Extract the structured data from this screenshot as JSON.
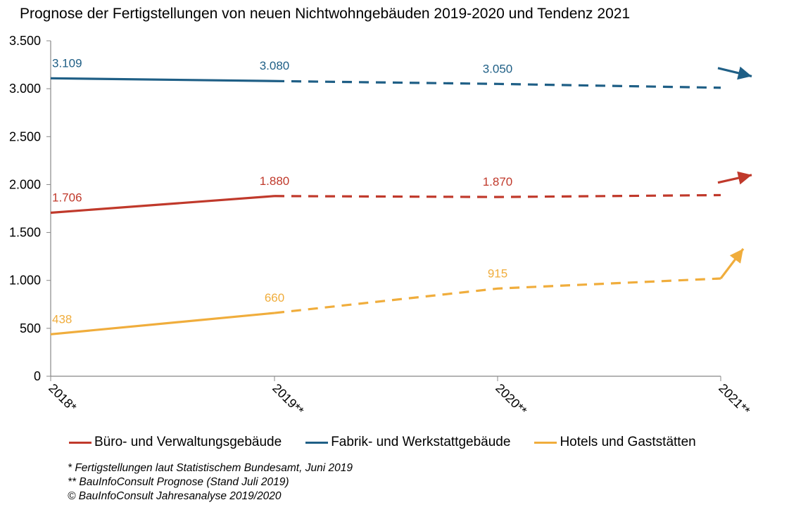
{
  "chart_data": {
    "type": "line",
    "title": "Prognose der Fertigstellungen  von neuen Nichtwohngebäuden  2019-2020 und Tendenz  2021",
    "categories": [
      "2018*",
      "2019**",
      "2020**",
      "2021**"
    ],
    "ylim": [
      0,
      3500
    ],
    "yticks": [
      0,
      500,
      1000,
      1500,
      2000,
      2500,
      3000,
      3500
    ],
    "ytick_labels": [
      "0",
      "500",
      "1.000",
      "1.500",
      "2.000",
      "2.500",
      "3.000",
      "3.500"
    ],
    "grid": false,
    "legend_position": "bottom",
    "solid_until_index": 1,
    "series": [
      {
        "name": "Büro- und Verwaltungsgebäude",
        "color": "#c0392b",
        "values": [
          1706,
          1880,
          1870,
          1890
        ],
        "labels": [
          "1.706",
          "1.880",
          "1.870",
          null
        ],
        "tendency": "up",
        "arrow_to": 2100
      },
      {
        "name": "Fabrik- und Werkstattgebäude",
        "color": "#1f5f86",
        "values": [
          3109,
          3080,
          3050,
          3010
        ],
        "labels": [
          "3.109",
          "3.080",
          "3.050",
          null
        ],
        "tendency": "down",
        "arrow_to": 3130
      },
      {
        "name": "Hotels und Gaststätten",
        "color": "#f0ad3c",
        "values": [
          438,
          660,
          915,
          1020
        ],
        "labels": [
          "438",
          "660",
          "915",
          null
        ],
        "tendency": "up",
        "arrow_to": 1330
      }
    ],
    "notes": [
      "* Fertigstellungen laut Statistischem Bundesamt, Juni 2019",
      "** BauInfoConsult Prognose (Stand Juli 2019)",
      " © BauInfoConsult Jahresanalyse 2019/2020"
    ]
  }
}
